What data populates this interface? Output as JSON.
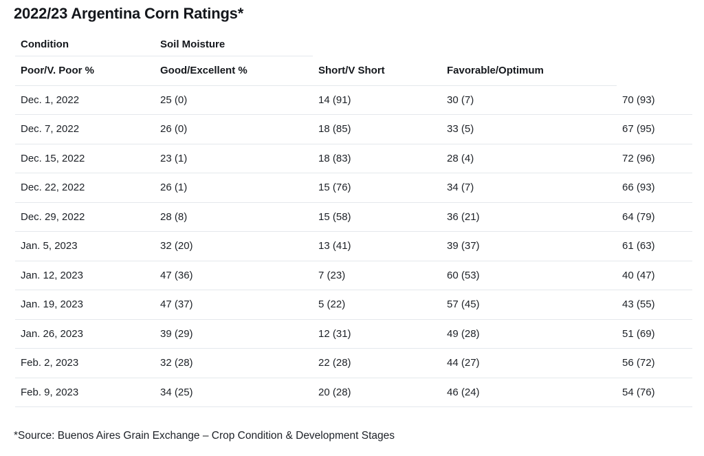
{
  "colors": {
    "background": "#ffffff",
    "text": "#1c2026",
    "title": "#14171c",
    "border": "#e4e8ec"
  },
  "page": {
    "title": "2022/23 Argentina Corn Ratings*",
    "footnote": "*Source: Buenos Aires Grain Exchange – Crop Condition & Development Stages"
  },
  "table": {
    "group_headers": [
      "Condition",
      "Soil Moisture"
    ],
    "column_headers": [
      "Poor/V. Poor %",
      "Good/Excellent %",
      "Short/V Short",
      "Favorable/Optimum"
    ],
    "rows": [
      [
        "Dec. 1, 2022",
        "25 (0)",
        "14 (91)",
        "30 (7)",
        "70 (93)"
      ],
      [
        "Dec. 7, 2022",
        "26 (0)",
        "18 (85)",
        "33 (5)",
        "67 (95)"
      ],
      [
        "Dec. 15, 2022",
        "23 (1)",
        "18 (83)",
        "28 (4)",
        "72 (96)"
      ],
      [
        "Dec. 22, 2022",
        "26 (1)",
        "15 (76)",
        "34 (7)",
        "66 (93)"
      ],
      [
        "Dec. 29, 2022",
        "28 (8)",
        "15 (58)",
        "36 (21)",
        "64 (79)"
      ],
      [
        "Jan. 5, 2023",
        "32 (20)",
        "13 (41)",
        "39 (37)",
        "61 (63)"
      ],
      [
        "Jan. 12, 2023",
        "47 (36)",
        "7 (23)",
        "60 (53)",
        "40 (47)"
      ],
      [
        "Jan. 19, 2023",
        "47 (37)",
        "5 (22)",
        "57 (45)",
        "43 (55)"
      ],
      [
        "Jan. 26, 2023",
        "39 (29)",
        "12 (31)",
        "49 (28)",
        "51 (69)"
      ],
      [
        "Feb. 2, 2023",
        "32 (28)",
        "22 (28)",
        "44 (27)",
        "56 (72)"
      ],
      [
        "Feb. 9, 2023",
        "34 (25)",
        "20 (28)",
        "46 (24)",
        "54 (76)"
      ]
    ]
  },
  "chart_data": {
    "type": "table",
    "title": "2022/23 Argentina Corn Ratings*",
    "header_row_1": [
      "Condition",
      "Soil Moisture"
    ],
    "header_row_2": [
      "Poor/V. Poor %",
      "Good/Excellent %",
      "Short/V Short",
      "Favorable/Optimum"
    ],
    "dates": [
      "Dec. 1, 2022",
      "Dec. 7, 2022",
      "Dec. 15, 2022",
      "Dec. 22, 2022",
      "Dec. 29, 2022",
      "Jan. 5, 2023",
      "Jan. 12, 2023",
      "Jan. 19, 2023",
      "Jan. 26, 2023",
      "Feb. 2, 2023",
      "Feb. 9, 2023"
    ],
    "series": [
      {
        "name": "Poor/V. Poor %",
        "values": [
          25,
          26,
          23,
          26,
          28,
          32,
          47,
          47,
          39,
          32,
          34
        ],
        "values_in_parentheses": [
          0,
          0,
          1,
          1,
          8,
          20,
          36,
          37,
          29,
          28,
          25
        ]
      },
      {
        "name": "Good/Excellent %",
        "values": [
          14,
          18,
          18,
          15,
          15,
          13,
          7,
          5,
          12,
          22,
          20
        ],
        "values_in_parentheses": [
          91,
          85,
          83,
          76,
          58,
          41,
          23,
          22,
          31,
          28,
          28
        ]
      },
      {
        "name": "Short/V Short",
        "values": [
          30,
          33,
          28,
          34,
          36,
          39,
          60,
          57,
          49,
          44,
          46
        ],
        "values_in_parentheses": [
          7,
          5,
          4,
          7,
          21,
          37,
          53,
          45,
          28,
          27,
          24
        ]
      },
      {
        "name": "Favorable/Optimum",
        "values": [
          70,
          67,
          72,
          66,
          64,
          61,
          40,
          43,
          51,
          56,
          54
        ],
        "values_in_parentheses": [
          93,
          95,
          96,
          93,
          79,
          63,
          47,
          55,
          69,
          72,
          76
        ]
      }
    ],
    "footnote": "*Source: Buenos Aires Grain Exchange – Crop Condition & Development Stages",
    "layout": "5 display columns: dates column plus 4 value columns; the two header rows span only partial width (group header line spans cols 1-2, column header line spans cols 1-4, leaving last value column unlabeled)"
  }
}
